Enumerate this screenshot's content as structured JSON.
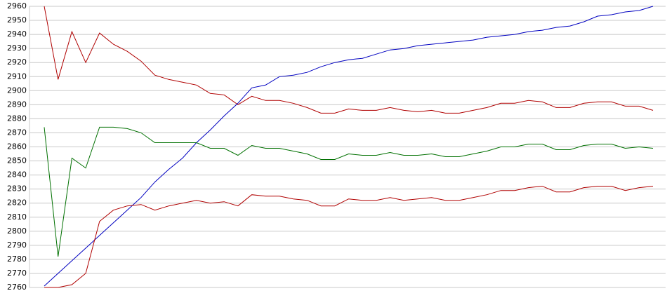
{
  "chart_data": {
    "type": "line",
    "categories": [
      null,
      null,
      null,
      null,
      null,
      null,
      null,
      null,
      null,
      null,
      null,
      null,
      null,
      null,
      null,
      null,
      null,
      null,
      null,
      null,
      null,
      null,
      null,
      null,
      null,
      null,
      null,
      null,
      null,
      null,
      null,
      null,
      null,
      null,
      null,
      null,
      null,
      null,
      null,
      null,
      null,
      null,
      null,
      null,
      null
    ],
    "series": [
      {
        "color": "#b00000",
        "values": [
          2960,
          2908,
          2942,
          2920,
          2941,
          2933,
          2928,
          2921,
          2911,
          2908,
          2906,
          2904,
          2898,
          2897,
          2890,
          2896,
          2893,
          2893,
          2891,
          2888,
          2884,
          2884,
          2887,
          2886,
          2886,
          2888,
          2886,
          2885,
          2886,
          2884,
          2884,
          2886,
          2888,
          2891,
          2891,
          2893,
          2892,
          2888,
          2888,
          2891,
          2892,
          2892,
          2889,
          2889,
          2886
        ]
      },
      {
        "color": "#0000c0",
        "values": [
          2761,
          2770,
          2779,
          2788,
          2797,
          2806,
          2815,
          2824,
          2835,
          2844,
          2852,
          2863,
          2872,
          2882,
          2891,
          2902,
          2904,
          2910,
          2911,
          2913,
          2917,
          2920,
          2922,
          2923,
          2926,
          2929,
          2930,
          2932,
          2933,
          2934,
          2935,
          2936,
          2938,
          2939,
          2940,
          2942,
          2943,
          2945,
          2946,
          2949,
          2953,
          2954,
          2956,
          2957,
          2960
        ]
      },
      {
        "color": "#007000",
        "values": [
          2874,
          2782,
          2852,
          2845,
          2874,
          2874,
          2873,
          2870,
          2863,
          2863,
          2863,
          2863,
          2859,
          2859,
          2854,
          2861,
          2859,
          2859,
          2857,
          2855,
          2851,
          2851,
          2855,
          2854,
          2854,
          2856,
          2854,
          2854,
          2855,
          2853,
          2853,
          2855,
          2857,
          2860,
          2860,
          2862,
          2862,
          2858,
          2858,
          2861,
          2862,
          2862,
          2859,
          2860,
          2859
        ]
      },
      {
        "color": "#b00000",
        "values": [
          2760,
          2760,
          2762,
          2770,
          2807,
          2815,
          2818,
          2819,
          2815,
          2818,
          2820,
          2822,
          2820,
          2821,
          2818,
          2826,
          2825,
          2825,
          2823,
          2822,
          2818,
          2818,
          2823,
          2822,
          2822,
          2824,
          2822,
          2823,
          2824,
          2822,
          2822,
          2824,
          2826,
          2829,
          2829,
          2831,
          2832,
          2828,
          2828,
          2831,
          2832,
          2832,
          2829,
          2831,
          2832
        ]
      }
    ],
    "ylim": [
      2760,
      2960
    ],
    "yticks": [
      2760,
      2770,
      2780,
      2790,
      2800,
      2810,
      2820,
      2830,
      2840,
      2850,
      2860,
      2870,
      2880,
      2890,
      2900,
      2910,
      2920,
      2930,
      2940,
      2950,
      2960
    ],
    "grid": true
  }
}
